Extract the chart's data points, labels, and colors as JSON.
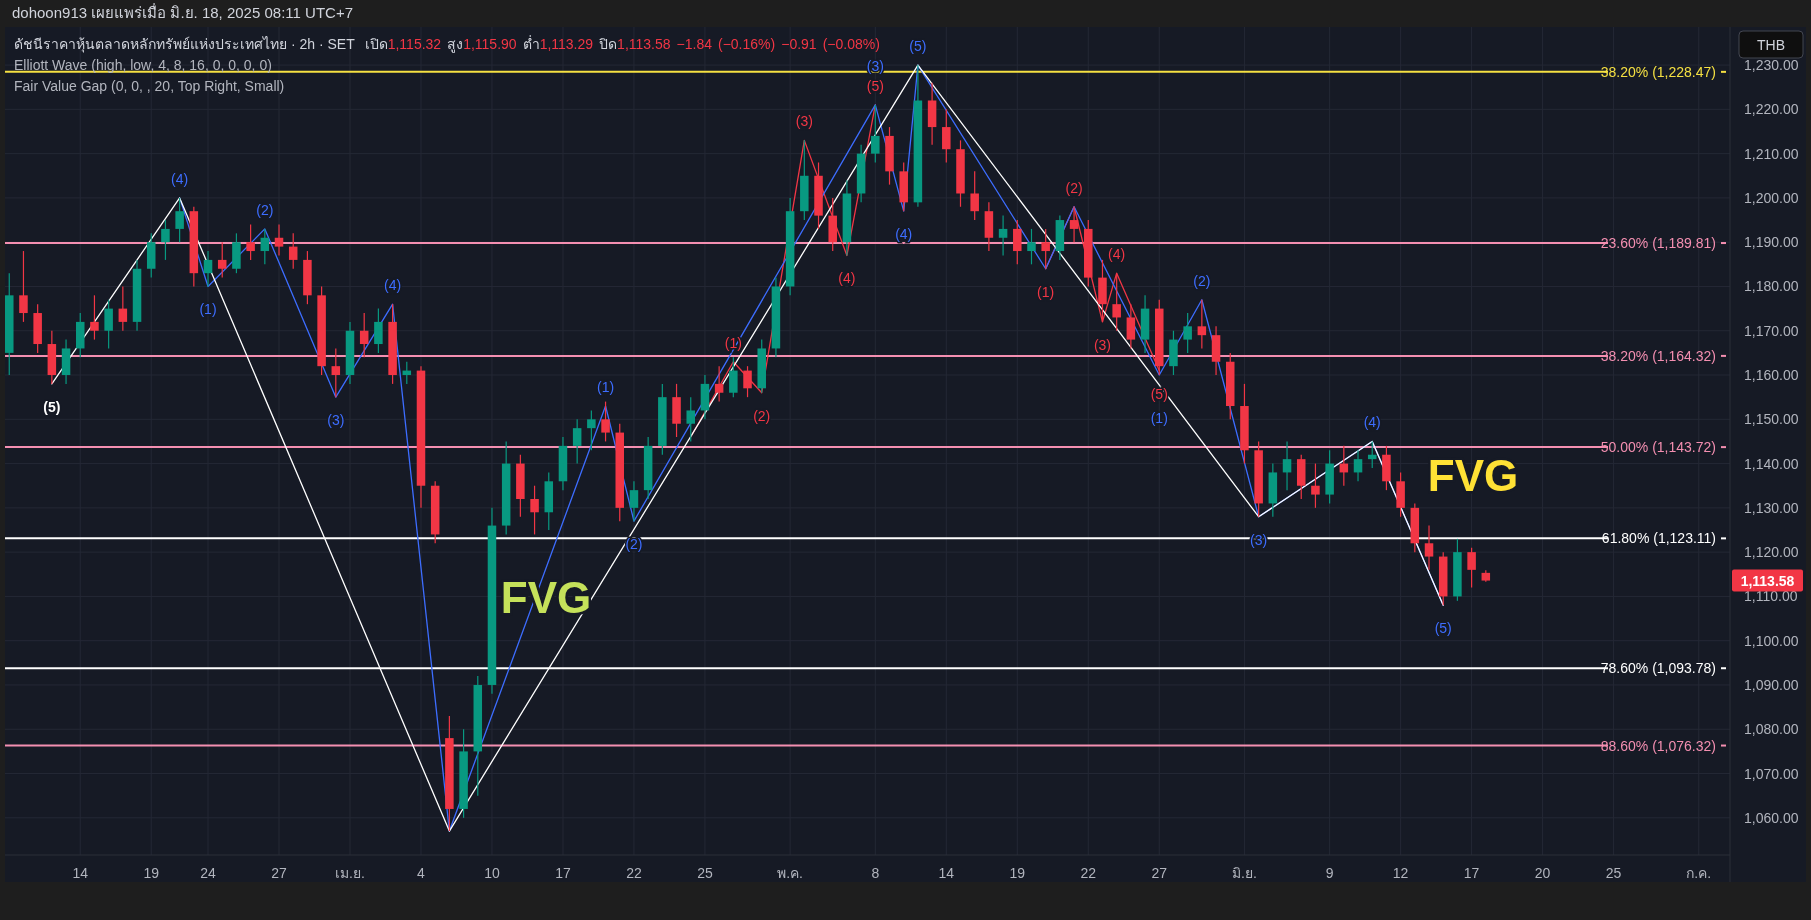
{
  "chart_data": {
    "type": "candlestick",
    "title": "ดัชนีราคาหุ้นตลาดหลักทรัพย์แห่งประเทศไทย · 2h · SET",
    "subtitle": "เปิด1,115.32 สูง1,115.90 ต่ำ1,113.29 ปิด1,113.58 −1.84 (−0.16%) −0.91 (−0.08%)",
    "ylabel": "THB",
    "annotations": [
      "dohoon913 เผยแพร่เมื่อ มิ.ย. 18, 2025 08:11 UTC+7",
      "Elliott Wave (high, low, 4, 8, 16, 0, 0, 0, 0)",
      "Fair Value Gap (0, 0, , 20, Top Right, Small)",
      "1,113.58",
      "FVG",
      "FVG",
      {
        "text": "(1)",
        "y": 1163
      },
      {
        "text": "(2)",
        "y": 1156
      },
      {
        "text": "(3)",
        "y": 1213
      },
      {
        "text": "(4)",
        "y": 1187
      },
      {
        "text": "(5)",
        "y": 1221
      },
      {
        "text": "(1)",
        "y": 1184
      },
      {
        "text": "(2)",
        "y": 1198
      },
      {
        "text": "(3)",
        "y": 1172
      },
      {
        "text": "(4)",
        "y": 1183
      },
      {
        "text": "(5)",
        "y": 1161
      },
      {
        "text": "(5)",
        "y": 1158
      },
      {
        "text": "(4)",
        "y": 1200
      },
      {
        "text": "(1)",
        "y": 1180
      },
      {
        "text": "(2)",
        "y": 1193
      },
      {
        "text": "(3)",
        "y": 1155
      },
      {
        "text": "(4)",
        "y": 1176
      },
      {
        "text": "(1)",
        "y": 1153
      },
      {
        "text": "(2)",
        "y": 1127
      },
      {
        "text": "(3)",
        "y": 1221
      },
      {
        "text": "(4)",
        "y": 1197
      },
      {
        "text": "(5)",
        "y": 1230
      },
      {
        "text": "(1)",
        "y": 1160
      },
      {
        "text": "(2)",
        "y": 1177
      },
      {
        "text": "(3)",
        "y": 1128
      },
      {
        "text": "(4)",
        "y": 1145
      },
      {
        "text": "(5)",
        "y": 1108
      }
    ],
    "categories": [
      null,
      null,
      null,
      null,
      null,
      "14",
      null,
      null,
      null,
      null,
      "19",
      null,
      null,
      null,
      "24",
      null,
      null,
      null,
      null,
      "27",
      null,
      null,
      null,
      null,
      "เม.ย.",
      null,
      null,
      null,
      null,
      "4",
      null,
      null,
      null,
      null,
      "10",
      null,
      null,
      null,
      null,
      "17",
      null,
      null,
      null,
      null,
      "22",
      null,
      null,
      null,
      null,
      "25",
      null,
      null,
      null,
      null,
      null,
      "พ.ค.",
      null,
      null,
      null,
      null,
      null,
      "8",
      null,
      null,
      null,
      null,
      "14",
      null,
      null,
      null,
      null,
      "19",
      null,
      null,
      null,
      null,
      "22",
      null,
      null,
      null,
      null,
      "27",
      null,
      null,
      null,
      null,
      null,
      "มิ.ย.",
      null,
      null,
      null,
      null,
      null,
      "9",
      null,
      null,
      null,
      null,
      "12",
      null,
      null,
      null,
      null,
      "17",
      null,
      null,
      null,
      null,
      "20",
      null,
      null,
      null,
      null,
      "25",
      null,
      null,
      null,
      null,
      null,
      "ก.ค.",
      null
    ],
    "ohlc": [
      [
        1165,
        1183,
        1160,
        1178
      ],
      [
        1178,
        1188,
        1172,
        1174
      ],
      [
        1174,
        1176,
        1165,
        1167
      ],
      [
        1167,
        1170,
        1158,
        1160
      ],
      [
        1160,
        1168,
        1158,
        1166
      ],
      [
        1166,
        1174,
        1164,
        1172
      ],
      [
        1172,
        1178,
        1168,
        1170
      ],
      [
        1170,
        1177,
        1166,
        1175
      ],
      [
        1175,
        1180,
        1170,
        1172
      ],
      [
        1172,
        1186,
        1170,
        1184
      ],
      [
        1184,
        1192,
        1182,
        1190
      ],
      [
        1190,
        1195,
        1186,
        1193
      ],
      [
        1193,
        1200,
        1190,
        1197
      ],
      [
        1197,
        1198,
        1180,
        1183
      ],
      [
        1183,
        1188,
        1180,
        1186
      ],
      [
        1186,
        1190,
        1182,
        1184
      ],
      [
        1184,
        1192,
        1183,
        1190
      ],
      [
        1190,
        1194,
        1186,
        1188
      ],
      [
        1188,
        1193,
        1185,
        1191
      ],
      [
        1191,
        1194,
        1187,
        1189
      ],
      [
        1189,
        1192,
        1184,
        1186
      ],
      [
        1186,
        1188,
        1176,
        1178
      ],
      [
        1178,
        1180,
        1160,
        1162
      ],
      [
        1162,
        1166,
        1155,
        1160
      ],
      [
        1160,
        1172,
        1158,
        1170
      ],
      [
        1170,
        1174,
        1164,
        1167
      ],
      [
        1167,
        1175,
        1165,
        1172
      ],
      [
        1172,
        1176,
        1158,
        1160
      ],
      [
        1160,
        1163,
        1158,
        1161
      ],
      [
        1161,
        1162,
        1130,
        1135
      ],
      [
        1135,
        1136,
        1122,
        1124
      ],
      [
        1078,
        1083,
        1057,
        1062
      ],
      [
        1062,
        1080,
        1060,
        1075
      ],
      [
        1075,
        1092,
        1065,
        1090
      ],
      [
        1090,
        1130,
        1088,
        1126
      ],
      [
        1126,
        1145,
        1124,
        1140
      ],
      [
        1140,
        1142,
        1128,
        1132
      ],
      [
        1132,
        1135,
        1124,
        1129
      ],
      [
        1129,
        1138,
        1125,
        1136
      ],
      [
        1136,
        1146,
        1134,
        1144
      ],
      [
        1144,
        1150,
        1140,
        1148
      ],
      [
        1148,
        1152,
        1143,
        1150
      ],
      [
        1150,
        1154,
        1145,
        1147
      ],
      [
        1147,
        1149,
        1127,
        1130
      ],
      [
        1130,
        1136,
        1127,
        1134
      ],
      [
        1134,
        1146,
        1132,
        1144
      ],
      [
        1144,
        1158,
        1142,
        1155
      ],
      [
        1155,
        1158,
        1146,
        1149
      ],
      [
        1149,
        1155,
        1145,
        1152
      ],
      [
        1152,
        1160,
        1150,
        1158
      ],
      [
        1158,
        1162,
        1154,
        1156
      ],
      [
        1156,
        1164,
        1155,
        1161
      ],
      [
        1161,
        1162,
        1155,
        1157
      ],
      [
        1157,
        1168,
        1156,
        1166
      ],
      [
        1166,
        1182,
        1164,
        1180
      ],
      [
        1180,
        1200,
        1178,
        1197
      ],
      [
        1197,
        1213,
        1195,
        1205
      ],
      [
        1205,
        1208,
        1193,
        1196
      ],
      [
        1196,
        1200,
        1188,
        1190
      ],
      [
        1190,
        1204,
        1187,
        1201
      ],
      [
        1201,
        1212,
        1199,
        1210
      ],
      [
        1210,
        1221,
        1208,
        1214
      ],
      [
        1214,
        1216,
        1203,
        1206
      ],
      [
        1206,
        1208,
        1197,
        1199
      ],
      [
        1199,
        1230,
        1198,
        1222
      ],
      [
        1222,
        1226,
        1212,
        1216
      ],
      [
        1216,
        1220,
        1208,
        1211
      ],
      [
        1211,
        1213,
        1198,
        1201
      ],
      [
        1201,
        1206,
        1195,
        1197
      ],
      [
        1197,
        1199,
        1188,
        1191
      ],
      [
        1191,
        1196,
        1187,
        1193
      ],
      [
        1193,
        1195,
        1185,
        1188
      ],
      [
        1188,
        1193,
        1185,
        1190
      ],
      [
        1190,
        1193,
        1184,
        1188
      ],
      [
        1188,
        1196,
        1186,
        1195
      ],
      [
        1195,
        1198,
        1190,
        1193
      ],
      [
        1193,
        1195,
        1180,
        1182
      ],
      [
        1182,
        1186,
        1172,
        1176
      ],
      [
        1176,
        1183,
        1170,
        1173
      ],
      [
        1173,
        1176,
        1166,
        1168
      ],
      [
        1168,
        1178,
        1165,
        1175
      ],
      [
        1175,
        1177,
        1160,
        1162
      ],
      [
        1162,
        1170,
        1160,
        1168
      ],
      [
        1168,
        1174,
        1165,
        1171
      ],
      [
        1171,
        1177,
        1166,
        1169
      ],
      [
        1169,
        1171,
        1160,
        1163
      ],
      [
        1163,
        1165,
        1150,
        1153
      ],
      [
        1153,
        1158,
        1140,
        1143
      ],
      [
        1143,
        1145,
        1128,
        1131
      ],
      [
        1131,
        1140,
        1128,
        1138
      ],
      [
        1138,
        1145,
        1134,
        1141
      ],
      [
        1141,
        1142,
        1132,
        1135
      ],
      [
        1135,
        1140,
        1130,
        1133
      ],
      [
        1133,
        1143,
        1131,
        1140
      ],
      [
        1140,
        1144,
        1135,
        1138
      ],
      [
        1138,
        1143,
        1136,
        1141
      ],
      [
        1141,
        1145,
        1139,
        1142
      ],
      [
        1142,
        1144,
        1134,
        1136
      ],
      [
        1136,
        1138,
        1128,
        1130
      ],
      [
        1130,
        1131,
        1120,
        1122
      ],
      [
        1122,
        1126,
        1116,
        1119
      ],
      [
        1119,
        1120,
        1108,
        1110
      ],
      [
        1110,
        1123,
        1109,
        1120
      ],
      [
        1120,
        1121,
        1112,
        1116
      ],
      [
        1115.32,
        1115.9,
        1113.29,
        1113.58
      ],
      null,
      null,
      null,
      null,
      null,
      null,
      null,
      null,
      null,
      null,
      null,
      null,
      null,
      null,
      null,
      null
    ],
    "series": [
      {
        "type": "line",
        "color": "#f23645",
        "values": [
          null,
          null,
          null,
          null,
          null,
          null,
          null,
          null,
          null,
          null,
          null,
          null,
          null,
          null,
          null,
          null,
          null,
          null,
          null,
          null,
          null,
          null,
          null,
          null,
          null,
          null,
          null,
          null,
          null,
          null,
          null,
          null,
          null,
          null,
          null,
          null,
          null,
          null,
          null,
          null,
          null,
          null,
          null,
          null,
          null,
          null,
          null,
          null,
          1146,
          null,
          null,
          1163,
          null,
          1156,
          null,
          null,
          1213,
          null,
          null,
          1187,
          null,
          1221,
          null,
          null,
          null,
          null,
          null,
          null,
          null,
          null,
          null,
          null,
          null,
          null,
          null,
          null,
          null,
          null,
          null,
          null,
          null,
          null,
          null,
          null,
          null,
          null,
          null,
          null,
          null,
          null,
          null,
          null,
          null,
          null,
          null,
          null,
          null,
          null,
          null,
          null,
          null,
          null,
          null,
          null,
          null,
          null,
          null,
          null,
          null,
          null,
          null,
          null,
          null,
          null,
          null,
          null,
          null,
          null,
          null,
          null,
          null
        ]
      },
      {
        "type": "line",
        "color": "#f23645",
        "values": [
          null,
          null,
          null,
          null,
          null,
          null,
          null,
          null,
          null,
          null,
          null,
          null,
          null,
          null,
          null,
          null,
          null,
          null,
          null,
          null,
          null,
          null,
          null,
          null,
          null,
          null,
          null,
          null,
          null,
          null,
          null,
          null,
          null,
          null,
          null,
          null,
          null,
          null,
          null,
          null,
          null,
          null,
          null,
          null,
          null,
          null,
          null,
          null,
          null,
          null,
          null,
          null,
          null,
          null,
          null,
          null,
          null,
          null,
          null,
          null,
          null,
          null,
          null,
          null,
          null,
          null,
          null,
          null,
          null,
          null,
          null,
          null,
          null,
          1184,
          null,
          1198,
          null,
          1172,
          1183,
          null,
          null,
          1161,
          null,
          null,
          null,
          null,
          null,
          null,
          null,
          null,
          null,
          null,
          null,
          null,
          null,
          null,
          null,
          null,
          null,
          null,
          null,
          null,
          null,
          null,
          null,
          null,
          null,
          null,
          null,
          null,
          null,
          null,
          null,
          null,
          null,
          null,
          null,
          null,
          null,
          null,
          null
        ]
      },
      {
        "type": "line",
        "color": "#3d6dff",
        "values": [
          null,
          null,
          null,
          null,
          null,
          null,
          null,
          null,
          null,
          null,
          null,
          null,
          1200,
          null,
          1180,
          null,
          null,
          null,
          1193,
          null,
          null,
          null,
          null,
          1155,
          null,
          null,
          null,
          1176,
          null,
          null,
          null,
          1057,
          null,
          null,
          null,
          null,
          null,
          null,
          null,
          null,
          null,
          null,
          1153,
          null,
          1127,
          null,
          null,
          null,
          null,
          null,
          null,
          null,
          null,
          null,
          null,
          null,
          null,
          null,
          null,
          null,
          null,
          1221,
          null,
          1197,
          1230,
          null,
          null,
          null,
          null,
          null,
          null,
          null,
          null,
          1184,
          null,
          1198,
          null,
          null,
          null,
          null,
          null,
          1160,
          null,
          null,
          1177,
          null,
          null,
          null,
          1128,
          null,
          null,
          null,
          null,
          null,
          null,
          null,
          1145,
          null,
          null,
          null,
          null,
          1108,
          null,
          null,
          null,
          null,
          null,
          null,
          null,
          null,
          null,
          null,
          null,
          null,
          null,
          null,
          null,
          null,
          null,
          null,
          null
        ]
      },
      {
        "type": "line",
        "color": "#ffffff",
        "values": [
          null,
          null,
          null,
          1158,
          null,
          null,
          null,
          null,
          null,
          null,
          null,
          null,
          1200,
          null,
          null,
          null,
          null,
          null,
          null,
          null,
          null,
          null,
          null,
          null,
          null,
          null,
          null,
          null,
          null,
          null,
          null,
          1057,
          null,
          null,
          null,
          null,
          null,
          null,
          null,
          null,
          null,
          null,
          null,
          null,
          null,
          null,
          null,
          null,
          null,
          null,
          null,
          null,
          null,
          null,
          null,
          null,
          null,
          null,
          null,
          null,
          null,
          null,
          null,
          null,
          1230,
          null,
          null,
          null,
          null,
          null,
          null,
          null,
          null,
          null,
          null,
          null,
          null,
          null,
          null,
          null,
          null,
          null,
          null,
          null,
          null,
          null,
          null,
          null,
          1128,
          null,
          null,
          null,
          null,
          null,
          null,
          null,
          1145,
          null,
          null,
          null,
          null,
          1108,
          null,
          null,
          null,
          null,
          null,
          null,
          null,
          null,
          null,
          null,
          null,
          null,
          null,
          null,
          null,
          null,
          null,
          null,
          null
        ]
      }
    ],
    "ylim": [
      1051.6,
      1238.6
    ],
    "yticks": [
      {
        "value": 1060,
        "label": "1,060.00"
      },
      {
        "value": 1070,
        "label": "1,070.00"
      },
      {
        "value": 1080,
        "label": "1,080.00"
      },
      {
        "value": 1090,
        "label": "1,090.00"
      },
      {
        "value": 1100,
        "label": "1,100.00"
      },
      {
        "value": 1110,
        "label": "1,110.00"
      },
      {
        "value": 1120,
        "label": "1,120.00"
      },
      {
        "value": 1130,
        "label": "1,130.00"
      },
      {
        "value": 1140,
        "label": "1,140.00"
      },
      {
        "value": 1150,
        "label": "1,150.00"
      },
      {
        "value": 1160,
        "label": "1,160.00"
      },
      {
        "value": 1170,
        "label": "1,170.00"
      },
      {
        "value": 1180,
        "label": "1,180.00"
      },
      {
        "value": 1190,
        "label": "1,190.00"
      },
      {
        "value": 1200,
        "label": "1,200.00"
      },
      {
        "value": 1210,
        "label": "1,210.00"
      },
      {
        "value": 1220,
        "label": "1,220.00"
      },
      {
        "value": 1230,
        "label": "1,230.00"
      }
    ],
    "ref_lines": [
      {
        "axis": "y",
        "value": 1228.47,
        "label": "38.20% (1,228.47)",
        "color": "#f5e042"
      },
      {
        "axis": "y",
        "value": 1189.81,
        "label": "23.60% (1,189.81)",
        "color": "#f48fb1"
      },
      {
        "axis": "y",
        "value": 1164.32,
        "label": "38.20% (1,164.32)",
        "color": "#f48fb1"
      },
      {
        "axis": "y",
        "value": 1143.72,
        "label": "50.00% (1,143.72)",
        "color": "#f48fb1"
      },
      {
        "axis": "y",
        "value": 1123.11,
        "label": "61.80% (1,123.11)",
        "color": "#ffffff"
      },
      {
        "axis": "y",
        "value": 1093.78,
        "label": "78.60% (1,093.78)",
        "color": "#ffffff"
      },
      {
        "axis": "y",
        "value": 1076.32,
        "label": "88.60% (1,076.32)",
        "color": "#f48fb1"
      }
    ],
    "grid": true
  }
}
